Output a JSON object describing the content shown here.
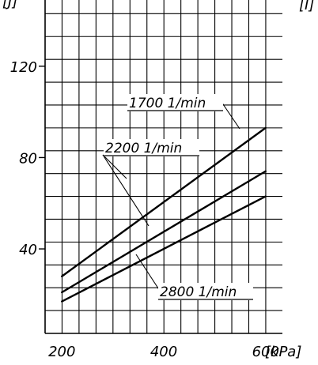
{
  "chart_data": {
    "type": "line",
    "title": "",
    "x_unit": "[kPa]",
    "y_unit": "[J]",
    "right_unit": "[I]",
    "xlim": [
      167,
      633
    ],
    "ylim": [
      3,
      149
    ],
    "xticks": [
      200,
      400,
      600
    ],
    "yticks": [
      40,
      80,
      120
    ],
    "xtick_labels": [
      "200",
      "400",
      "600"
    ],
    "ytick_labels": [
      "40",
      "80",
      "120"
    ],
    "x_grid_step": 33.33,
    "y_grid_step": 10,
    "grid": true,
    "legend": "none",
    "series": [
      {
        "name": "1700 1/min",
        "x": [
          200,
          600
        ],
        "y": [
          28,
          93
        ]
      },
      {
        "name": "2200 1/min",
        "x": [
          200,
          600
        ],
        "y": [
          21,
          74
        ]
      },
      {
        "name": "2800 1/min",
        "x": [
          200,
          600
        ],
        "y": [
          17,
          63
        ]
      }
    ],
    "colors": {
      "line": "#000000",
      "grid": "#000000",
      "background": "#ffffff"
    }
  }
}
